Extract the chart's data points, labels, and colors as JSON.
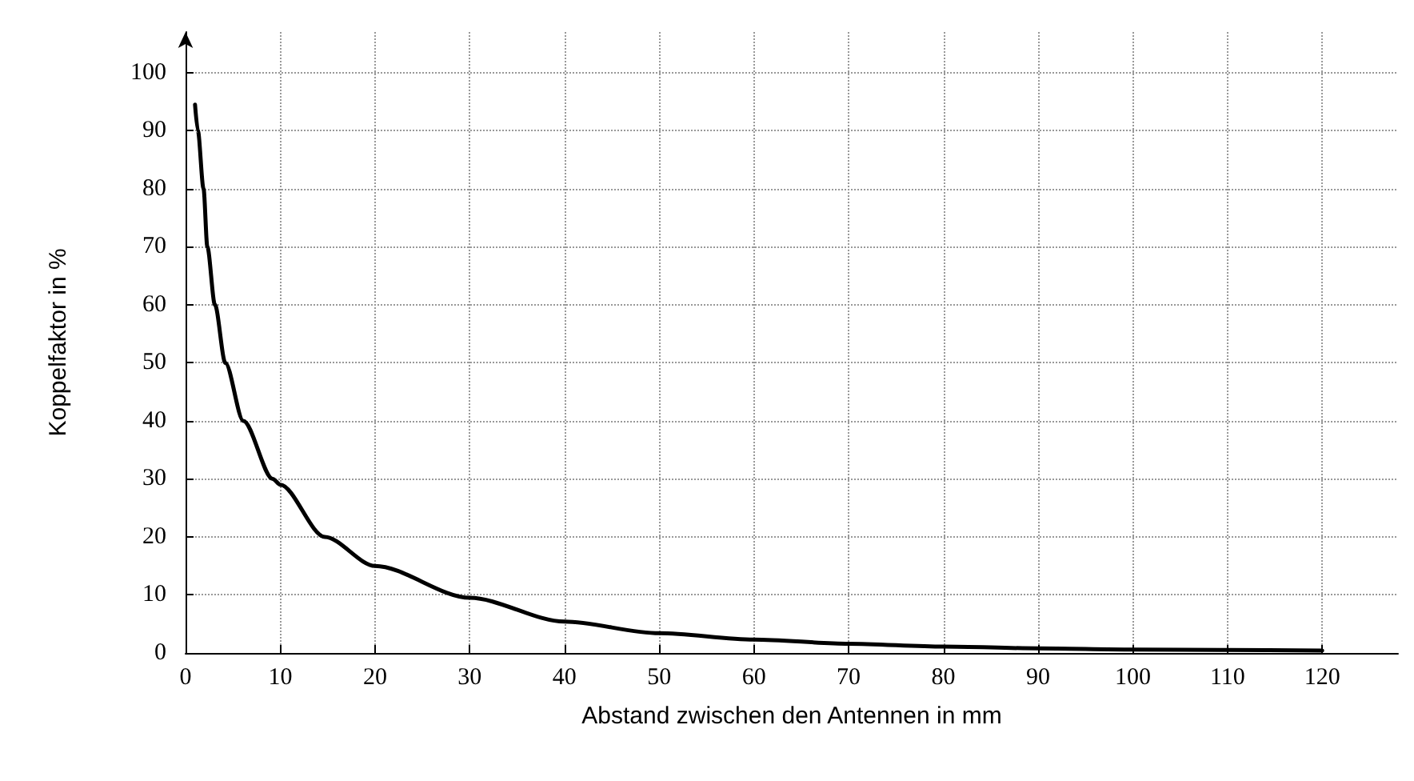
{
  "chart_data": {
    "type": "line",
    "xlabel": "Abstand zwischen den Antennen in mm",
    "ylabel": "Koppelfaktor in %",
    "x": [
      1,
      1.3,
      1.9,
      2.3,
      3.1,
      4.2,
      6.1,
      9.2,
      10,
      14.7,
      20,
      30,
      40,
      50,
      60,
      70,
      80,
      90,
      100,
      110,
      120
    ],
    "series": [
      {
        "color": "#000000",
        "values": [
          94.5,
          90,
          80,
          70,
          60,
          50,
          40,
          30,
          29,
          20,
          15,
          9.5,
          5.4,
          3.4,
          2.3,
          1.6,
          1.1,
          0.8,
          0.6,
          0.5,
          0.4
        ]
      }
    ],
    "xlim": [
      0,
      128
    ],
    "xticks": [
      0,
      10,
      20,
      30,
      40,
      50,
      60,
      70,
      80,
      90,
      100,
      110,
      120
    ],
    "ylim": [
      0,
      107
    ],
    "yticks": [
      0,
      10,
      20,
      30,
      40,
      50,
      60,
      70,
      80,
      90,
      100
    ],
    "grid": true,
    "marker": "none",
    "line_style": "solid"
  }
}
